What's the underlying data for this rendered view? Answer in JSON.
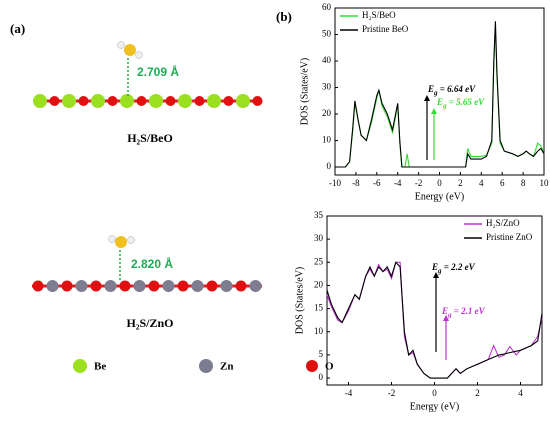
{
  "panel_a": {
    "label": "(a)",
    "beo_distance": "2.709 Å",
    "beo_title": "H₂S/BeO",
    "zno_distance": "2.820 Å",
    "zno_title": "H₂S/ZnO",
    "legend": [
      "Be",
      "Zn",
      "O"
    ]
  },
  "panel_b": {
    "label": "(b)"
  },
  "chart_data": [
    {
      "type": "line",
      "xlabel": "Energy (eV)",
      "ylabel": "DOS (States/eV)",
      "xlim": [
        -10,
        10
      ],
      "xticks": [
        -10,
        -8,
        -6,
        -4,
        -2,
        0,
        2,
        4,
        6,
        8,
        10
      ],
      "ylim": [
        -3,
        60
      ],
      "yticks": [
        0,
        10,
        20,
        30,
        40,
        50,
        60
      ],
      "legend": "upper left",
      "x": [
        -10,
        -9,
        -8.6,
        -8.3,
        -8.1,
        -7.8,
        -7.5,
        -7,
        -6.5,
        -6,
        -5.8,
        -5.5,
        -5,
        -4.5,
        -4.2,
        -4,
        -3.8,
        -3.6,
        -3.3,
        -3.1,
        -2.9,
        2.5,
        2.7,
        3,
        3.5,
        4,
        4.5,
        5,
        5.2,
        5.35,
        5.5,
        5.8,
        6.2,
        7,
        7.5,
        8,
        8.3,
        8.6,
        9,
        9.4,
        9.7,
        10
      ],
      "series": [
        {
          "name": "H₂S/BeO",
          "color": "#33dd33",
          "values": [
            0,
            0,
            2,
            14,
            24,
            18,
            12,
            10,
            17,
            26,
            29,
            23,
            19,
            13,
            19,
            24,
            9,
            0,
            0,
            5,
            0,
            0,
            7,
            4,
            4,
            4,
            4.5,
            9,
            38,
            53,
            34,
            9,
            6,
            5,
            4,
            5,
            6,
            5,
            4,
            9,
            8,
            5
          ]
        },
        {
          "name": "Pristine BeO",
          "color": "#000000",
          "values": [
            0,
            0,
            2,
            15,
            25,
            18,
            12,
            10,
            18,
            27,
            29,
            24,
            20,
            14,
            20,
            24,
            10,
            0,
            0,
            0,
            0,
            0,
            5,
            3,
            3,
            3,
            4,
            10,
            40,
            55,
            35,
            10,
            6,
            5,
            4,
            5,
            6,
            5,
            4,
            6,
            7,
            5
          ]
        }
      ],
      "annotations": [
        {
          "symbol": "E",
          "subscript": "g",
          "text": " = 6.64 eV",
          "color": "#000000"
        },
        {
          "symbol": "E",
          "subscript": "g",
          "text": " = 5.65 eV",
          "color": "#33dd33"
        }
      ]
    },
    {
      "type": "line",
      "xlabel": "Energy (eV)",
      "ylabel": "DOS (States/eV)",
      "xlim": [
        -5,
        5
      ],
      "xticks": [
        -4,
        -2,
        0,
        2,
        4
      ],
      "ylim": [
        -1.5,
        35
      ],
      "yticks": [
        0,
        5,
        10,
        15,
        20,
        25,
        30,
        35
      ],
      "legend": "upper right",
      "x": [
        -5,
        -4.8,
        -4.5,
        -4.3,
        -4,
        -3.7,
        -3.5,
        -3.2,
        -3,
        -2.8,
        -2.6,
        -2.4,
        -2.2,
        -2,
        -1.8,
        -1.6,
        -1.4,
        -1.2,
        -1,
        -0.8,
        -0.5,
        -0.2,
        0,
        0.3,
        0.6,
        0.8,
        1,
        1.2,
        1.5,
        2,
        2.5,
        2.75,
        3,
        3.25,
        3.5,
        3.8,
        4,
        4.5,
        4.8,
        5
      ],
      "series": [
        {
          "name": "H₂S/ZnO",
          "color": "#bb33cc",
          "values": [
            18,
            15.5,
            12.5,
            12,
            14.5,
            18,
            17,
            22,
            23.5,
            22,
            24.5,
            23,
            23.5,
            21.5,
            25,
            25,
            9,
            5,
            5.5,
            3,
            1,
            0,
            0,
            0,
            0,
            1,
            2,
            1,
            2,
            3,
            4,
            7,
            4.5,
            5,
            6.8,
            5,
            6,
            7,
            9,
            13
          ]
        },
        {
          "name": "Pristine ZnO",
          "color": "#000000",
          "values": [
            19,
            16,
            13,
            12,
            15,
            18,
            17,
            22,
            24,
            22,
            24,
            23,
            24,
            22,
            25,
            24,
            10,
            5,
            6,
            3,
            1,
            0,
            0,
            0,
            0,
            1,
            2,
            1,
            2,
            3,
            4,
            4.5,
            5,
            5.2,
            5.5,
            5.8,
            6,
            7,
            8,
            14
          ]
        }
      ],
      "annotations": [
        {
          "symbol": "E",
          "subscript": "g",
          "text": " = 2.2 eV",
          "color": "#000000"
        },
        {
          "symbol": "E",
          "subscript": "g",
          "text": " = 2.1 eV",
          "color": "#bb33cc"
        }
      ]
    }
  ]
}
